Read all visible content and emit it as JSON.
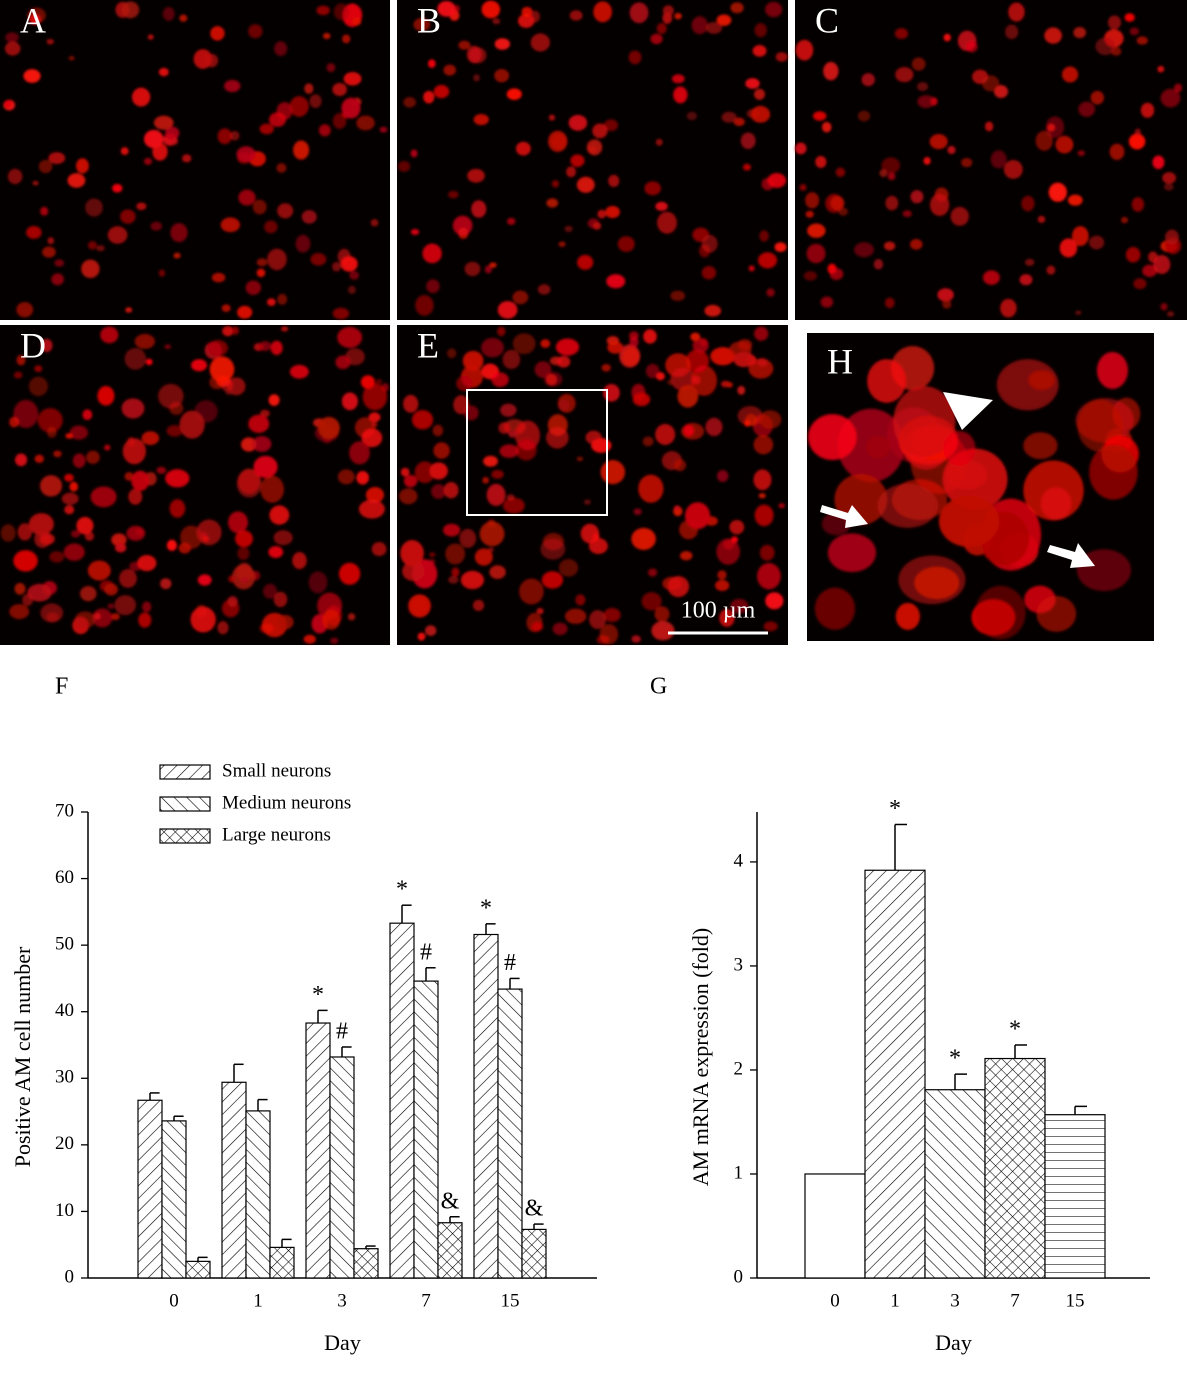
{
  "image_panels": [
    "A",
    "B",
    "C",
    "D",
    "E",
    "H"
  ],
  "scale_bar": "100 µm",
  "chart_data": [
    {
      "type": "bar",
      "label": "F",
      "x_label": "Day",
      "y_label": "Positive AM cell number",
      "categories": [
        "0",
        "1",
        "3",
        "7",
        "15"
      ],
      "ylim": [
        0,
        70
      ],
      "yticks": [
        0,
        10,
        20,
        30,
        40,
        50,
        60,
        70
      ],
      "series": [
        {
          "name": "Small neurons",
          "color": "#000000",
          "pattern": "forward",
          "values": [
            26.7,
            29.4,
            38.3,
            53.3,
            51.6
          ],
          "errors": [
            1.1,
            2.7,
            1.9,
            2.7,
            1.6
          ],
          "annotations": [
            null,
            null,
            "*",
            "*",
            "*"
          ]
        },
        {
          "name": "Medium neurons",
          "color": "#000000",
          "pattern": "backward",
          "values": [
            23.6,
            25.1,
            33.2,
            44.6,
            43.4
          ],
          "errors": [
            0.7,
            1.7,
            1.5,
            2.0,
            1.6
          ],
          "annotations": [
            null,
            null,
            "#",
            "#",
            "#"
          ]
        },
        {
          "name": "Large neurons",
          "color": "#000000",
          "pattern": "cross",
          "values": [
            2.5,
            4.6,
            4.4,
            8.3,
            7.3
          ],
          "errors": [
            0.6,
            1.2,
            0.4,
            0.9,
            0.8
          ],
          "annotations": [
            null,
            null,
            null,
            "&",
            "&"
          ]
        }
      ]
    },
    {
      "type": "bar",
      "label": "G",
      "x_label": "Day",
      "y_label": "AM mRNA expression (fold)",
      "categories": [
        "0",
        "1",
        "3",
        "7",
        "15"
      ],
      "ylim": [
        0,
        4.48
      ],
      "yticks": [
        0,
        1,
        2,
        3,
        4
      ],
      "color": "#000000",
      "patterns": [
        "none",
        "forward",
        "backward",
        "cross",
        "horizontal"
      ],
      "values": [
        1.0,
        3.92,
        1.81,
        2.11,
        1.57
      ],
      "errors": [
        0,
        0.44,
        0.15,
        0.13,
        0.08
      ],
      "annotations": [
        null,
        "*",
        "*",
        "*",
        null
      ]
    }
  ]
}
